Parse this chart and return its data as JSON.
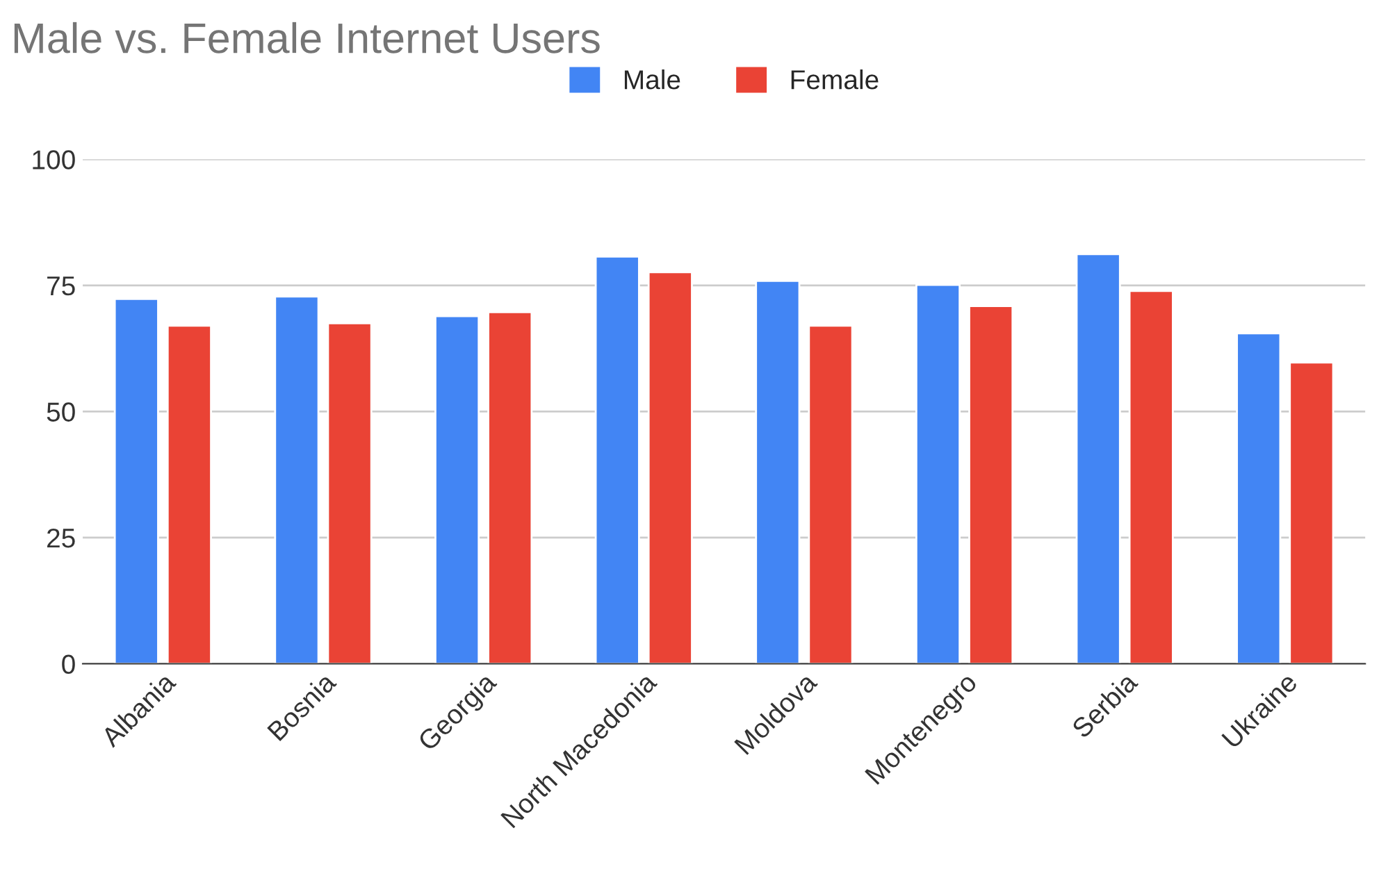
{
  "chart_data": {
    "type": "bar",
    "title": "Male vs. Female Internet Users",
    "categories": [
      "Albania",
      "Bosnia",
      "Georgia",
      "North Macedonia",
      "Moldova",
      "Montenegro",
      "Serbia",
      "Ukraine"
    ],
    "series": [
      {
        "name": "Male",
        "color": "#4285f4",
        "values": [
          72.3,
          72.8,
          68.9,
          80.7,
          75.9,
          75.1,
          81.2,
          65.5
        ]
      },
      {
        "name": "Female",
        "color": "#ea4335",
        "values": [
          67.0,
          67.5,
          69.7,
          77.6,
          67.0,
          70.9,
          73.9,
          59.7
        ]
      }
    ],
    "ylim": [
      0,
      100
    ],
    "yticks": [
      0,
      25,
      50,
      75,
      100
    ],
    "grid": "y",
    "legend": "top"
  }
}
